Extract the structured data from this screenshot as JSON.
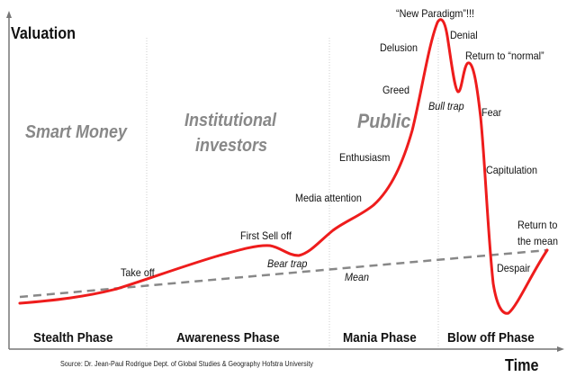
{
  "axes": {
    "y_label": "Valuation",
    "x_label": "Time"
  },
  "groups": {
    "smart_money": "Smart Money",
    "institutional_1": "Institutional",
    "institutional_2": "investors",
    "public": "Public"
  },
  "phases": [
    "Stealth Phase",
    "Awareness Phase",
    "Mania Phase",
    "Blow off Phase"
  ],
  "annotations": {
    "new_paradigm": "“New Paradigm”!!!",
    "denial": "Denial",
    "delusion": "Delusion",
    "return_normal": "Return to “normal”",
    "greed": "Greed",
    "bull_trap": "Bull trap",
    "fear": "Fear",
    "enthusiasm": "Enthusiasm",
    "capitulation": "Capitulation",
    "media_attention": "Media attention",
    "first_sell_off": "First Sell off",
    "return_mean_1": "Return to",
    "return_mean_2": "the mean",
    "bear_trap": "Bear trap",
    "take_off": "Take off",
    "despair": "Despair",
    "mean": "Mean"
  },
  "source": "Source: Dr. Jean-Paul Rodrigue Dept. of Global Studies & Geography Hofstra University",
  "colors": {
    "curve": "#ee1c1c",
    "mean_line": "#888888",
    "group_labels": "#888888"
  }
}
